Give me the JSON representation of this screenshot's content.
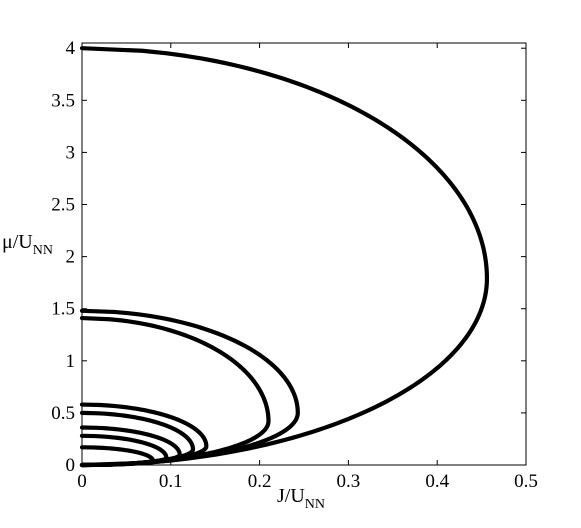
{
  "chart_data": {
    "type": "line",
    "title": "",
    "xlabel": {
      "main": "J/U",
      "sub": "NN"
    },
    "ylabel": {
      "main": "μ/U",
      "sub": "NN"
    },
    "xlim": [
      0,
      0.5
    ],
    "ylim": [
      0,
      4.05
    ],
    "xticks": [
      0,
      0.1,
      0.2,
      0.3,
      0.4,
      0.5
    ],
    "xtick_labels": [
      "0",
      "0.1",
      "0.2",
      "0.3",
      "0.4",
      "0.5"
    ],
    "yticks": [
      0,
      0.5,
      1,
      1.5,
      2,
      2.5,
      3,
      3.5,
      4
    ],
    "ytick_labels": [
      "0",
      "0.5",
      "1",
      "1.5",
      "2",
      "2.5",
      "3",
      "3.5",
      "4"
    ],
    "grid": false,
    "legend": "none",
    "series": [
      {
        "mu_top": 4.0,
        "mu_bottom": 0.0,
        "j_tip": 0.456,
        "mu_tip": 1.79
      },
      {
        "mu_top": 1.48,
        "mu_bottom": 0.0,
        "j_tip": 0.243,
        "mu_tip": 0.5
      },
      {
        "mu_top": 1.41,
        "mu_bottom": 0.0,
        "j_tip": 0.21,
        "mu_tip": 0.42
      },
      {
        "mu_top": 0.58,
        "mu_bottom": 0.0,
        "j_tip": 0.14,
        "mu_tip": 0.18
      },
      {
        "mu_top": 0.5,
        "mu_bottom": 0.0,
        "j_tip": 0.125,
        "mu_tip": 0.15
      },
      {
        "mu_top": 0.36,
        "mu_bottom": 0.0,
        "j_tip": 0.11,
        "mu_tip": 0.1
      },
      {
        "mu_top": 0.28,
        "mu_bottom": 0.0,
        "j_tip": 0.095,
        "mu_tip": 0.07
      },
      {
        "mu_top": 0.17,
        "mu_bottom": 0.0,
        "j_tip": 0.08,
        "mu_tip": 0.04
      }
    ]
  }
}
